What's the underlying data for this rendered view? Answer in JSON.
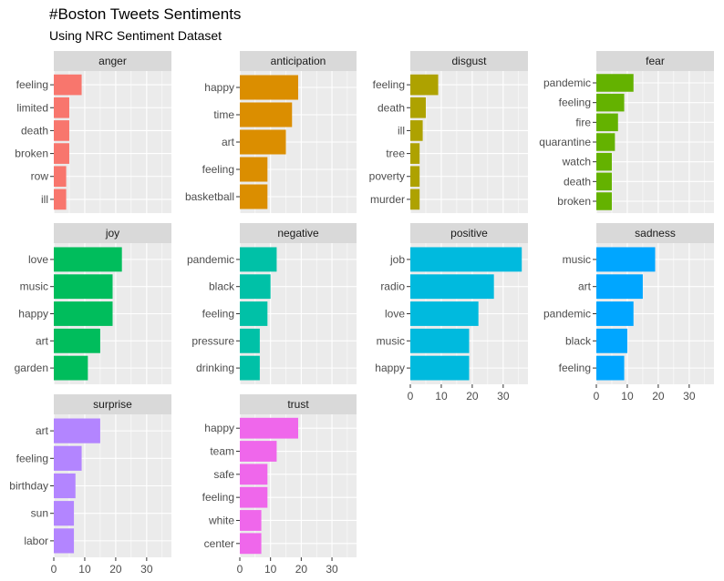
{
  "title": "#Boston Tweets Sentiments",
  "subtitle": "Using NRC Sentiment Dataset",
  "chart_data": {
    "type": "bar",
    "orientation": "horizontal",
    "facet_by": "sentiment",
    "xlim": [
      0,
      38
    ],
    "x_ticks": [
      0,
      10,
      20,
      30
    ],
    "x_tick_labels": [
      "0",
      "10",
      "20",
      "30"
    ],
    "grid": true,
    "legend": "none",
    "facets": [
      {
        "name": "anger",
        "color": "#F8766D",
        "categories": [
          "feeling",
          "limited",
          "death",
          "broken",
          "row",
          "ill"
        ],
        "values": [
          9,
          5,
          5,
          5,
          4,
          4
        ]
      },
      {
        "name": "anticipation",
        "color": "#DB8E00",
        "categories": [
          "happy",
          "time",
          "art",
          "feeling",
          "basketball"
        ],
        "values": [
          19,
          17,
          15,
          9,
          9
        ]
      },
      {
        "name": "disgust",
        "color": "#AEA200",
        "categories": [
          "feeling",
          "death",
          "ill",
          "tree",
          "poverty",
          "murder"
        ],
        "values": [
          9,
          5,
          4,
          3,
          3,
          3
        ]
      },
      {
        "name": "fear",
        "color": "#64B200",
        "categories": [
          "pandemic",
          "feeling",
          "fire",
          "quarantine",
          "watch",
          "death",
          "broken"
        ],
        "values": [
          12,
          9,
          7,
          6,
          5,
          5,
          5
        ]
      },
      {
        "name": "joy",
        "color": "#00BD5C",
        "categories": [
          "love",
          "music",
          "happy",
          "art",
          "garden"
        ],
        "values": [
          22,
          19,
          19,
          15,
          11
        ]
      },
      {
        "name": "negative",
        "color": "#00C1A7",
        "categories": [
          "pandemic",
          "black",
          "feeling",
          "pressure",
          "drinking"
        ],
        "values": [
          12,
          10,
          9,
          6.5,
          6.5
        ]
      },
      {
        "name": "positive",
        "color": "#00BADE",
        "categories": [
          "job",
          "radio",
          "love",
          "music",
          "happy"
        ],
        "values": [
          36,
          27,
          22,
          19,
          19
        ]
      },
      {
        "name": "sadness",
        "color": "#00A6FF",
        "categories": [
          "music",
          "art",
          "pandemic",
          "black",
          "feeling"
        ],
        "values": [
          19,
          15,
          12,
          10,
          9
        ]
      },
      {
        "name": "surprise",
        "color": "#B385FF",
        "categories": [
          "art",
          "feeling",
          "birthday",
          "sun",
          "labor"
        ],
        "values": [
          15,
          9,
          7,
          6.5,
          6.5
        ]
      },
      {
        "name": "trust",
        "color": "#EF67EB",
        "categories": [
          "happy",
          "team",
          "safe",
          "feeling",
          "white",
          "center"
        ],
        "values": [
          19,
          12,
          9,
          9,
          7,
          7
        ]
      }
    ]
  }
}
